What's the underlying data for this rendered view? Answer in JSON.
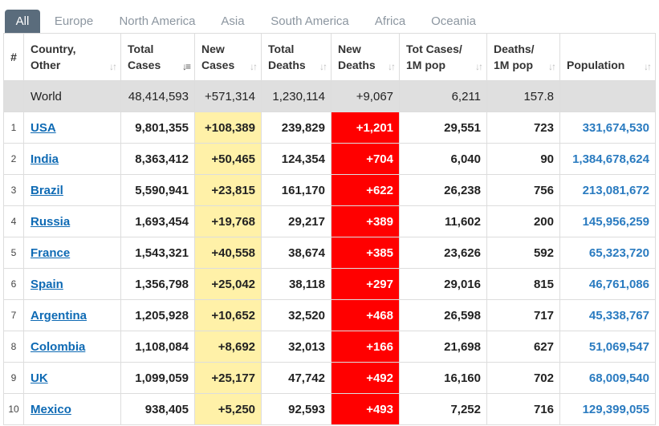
{
  "tabs": [
    "All",
    "Europe",
    "North America",
    "Asia",
    "South America",
    "Africa",
    "Oceania"
  ],
  "active_tab": "All",
  "headers": {
    "index": "#",
    "country": [
      "Country,",
      "Other"
    ],
    "total_cases": [
      "Total",
      "Cases"
    ],
    "new_cases": [
      "New",
      "Cases"
    ],
    "total_deaths": [
      "Total",
      "Deaths"
    ],
    "new_deaths": [
      "New",
      "Deaths"
    ],
    "tot_cases_1m": [
      "Tot Cases/",
      "1M pop"
    ],
    "deaths_1m": [
      "Deaths/",
      "1M pop"
    ],
    "population": [
      "Population"
    ]
  },
  "colors": {
    "active_tab_bg": "#5a6c7c",
    "new_cases_bg": "#fff1a8",
    "new_deaths_bg": "#ff0000",
    "link": "#0e6ab4"
  },
  "world": {
    "country": "World",
    "total_cases": "48,414,593",
    "new_cases": "+571,314",
    "total_deaths": "1,230,114",
    "new_deaths": "+9,067",
    "tot_cases_1m": "6,211",
    "deaths_1m": "157.8",
    "population": ""
  },
  "rows": [
    {
      "idx": "1",
      "country": "USA",
      "total_cases": "9,801,355",
      "new_cases": "+108,389",
      "total_deaths": "239,829",
      "new_deaths": "+1,201",
      "tot_cases_1m": "29,551",
      "deaths_1m": "723",
      "population": "331,674,530"
    },
    {
      "idx": "2",
      "country": "India",
      "total_cases": "8,363,412",
      "new_cases": "+50,465",
      "total_deaths": "124,354",
      "new_deaths": "+704",
      "tot_cases_1m": "6,040",
      "deaths_1m": "90",
      "population": "1,384,678,624"
    },
    {
      "idx": "3",
      "country": "Brazil",
      "total_cases": "5,590,941",
      "new_cases": "+23,815",
      "total_deaths": "161,170",
      "new_deaths": "+622",
      "tot_cases_1m": "26,238",
      "deaths_1m": "756",
      "population": "213,081,672"
    },
    {
      "idx": "4",
      "country": "Russia",
      "total_cases": "1,693,454",
      "new_cases": "+19,768",
      "total_deaths": "29,217",
      "new_deaths": "+389",
      "tot_cases_1m": "11,602",
      "deaths_1m": "200",
      "population": "145,956,259"
    },
    {
      "idx": "5",
      "country": "France",
      "total_cases": "1,543,321",
      "new_cases": "+40,558",
      "total_deaths": "38,674",
      "new_deaths": "+385",
      "tot_cases_1m": "23,626",
      "deaths_1m": "592",
      "population": "65,323,720"
    },
    {
      "idx": "6",
      "country": "Spain",
      "total_cases": "1,356,798",
      "new_cases": "+25,042",
      "total_deaths": "38,118",
      "new_deaths": "+297",
      "tot_cases_1m": "29,016",
      "deaths_1m": "815",
      "population": "46,761,086"
    },
    {
      "idx": "7",
      "country": "Argentina",
      "total_cases": "1,205,928",
      "new_cases": "+10,652",
      "total_deaths": "32,520",
      "new_deaths": "+468",
      "tot_cases_1m": "26,598",
      "deaths_1m": "717",
      "population": "45,338,767"
    },
    {
      "idx": "8",
      "country": "Colombia",
      "total_cases": "1,108,084",
      "new_cases": "+8,692",
      "total_deaths": "32,013",
      "new_deaths": "+166",
      "tot_cases_1m": "21,698",
      "deaths_1m": "627",
      "population": "51,069,547"
    },
    {
      "idx": "9",
      "country": "UK",
      "total_cases": "1,099,059",
      "new_cases": "+25,177",
      "total_deaths": "47,742",
      "new_deaths": "+492",
      "tot_cases_1m": "16,160",
      "deaths_1m": "702",
      "population": "68,009,540"
    },
    {
      "idx": "10",
      "country": "Mexico",
      "total_cases": "938,405",
      "new_cases": "+5,250",
      "total_deaths": "92,593",
      "new_deaths": "+493",
      "tot_cases_1m": "7,252",
      "deaths_1m": "716",
      "population": "129,399,055"
    }
  ]
}
